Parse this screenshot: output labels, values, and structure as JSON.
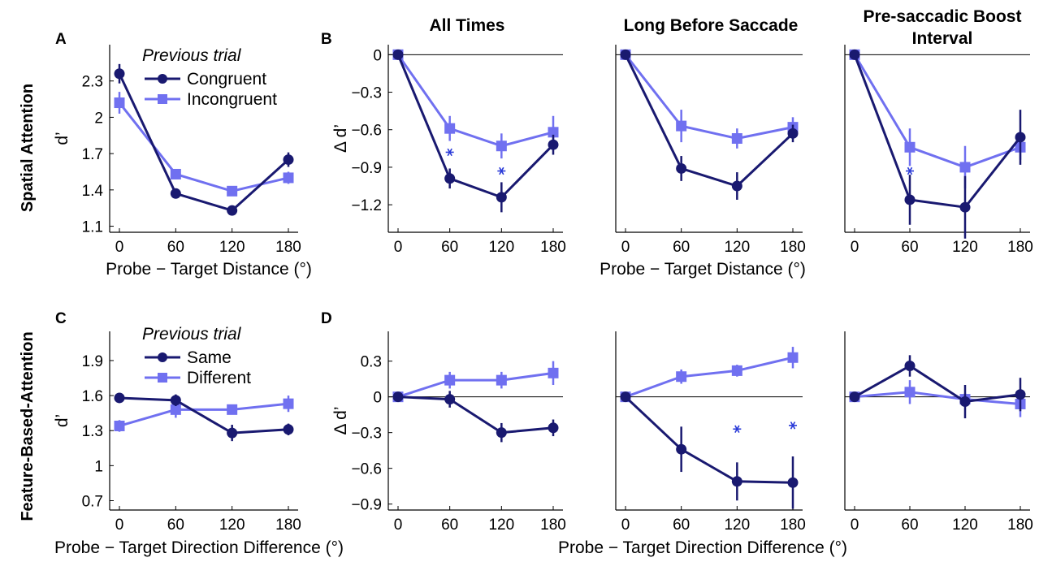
{
  "colors": {
    "dark": "#191970",
    "light": "#7070f0",
    "star": "#2a3ad8"
  },
  "row_labels": [
    "Spatial Attention",
    "Feature-Based-Attention"
  ],
  "column_titles": [
    "All Times",
    "Long Before Saccade",
    "Pre-saccadic Boost",
    "Interval"
  ],
  "panel_letters": [
    "A",
    "B",
    "C",
    "D"
  ],
  "xlabels": {
    "a": "Probe − Target Distance (°)",
    "b": "Probe − Target Distance (°)",
    "c": "Probe − Target Direction Difference (°)",
    "d": "Probe − Target Direction Difference (°)"
  },
  "legend_a": {
    "title": "Previous trial",
    "entries": [
      "Congruent",
      "Incongruent"
    ]
  },
  "legend_c": {
    "title": "Previous trial",
    "entries": [
      "Same",
      "Different"
    ]
  },
  "chart_data": [
    {
      "id": "A",
      "type": "line",
      "ylabel": "d’",
      "ylim": [
        1.05,
        2.6
      ],
      "yticks": [
        1.1,
        1.4,
        1.7,
        2,
        2.3
      ],
      "ytick_labels": [
        "1.1",
        "1.4",
        "1.7",
        "2",
        "2.3"
      ],
      "x": [
        0,
        60,
        120,
        180
      ],
      "xticks": [
        "0",
        "60",
        "120",
        "180"
      ],
      "series": [
        {
          "name": "Congruent",
          "marker": "circle",
          "color": "dark",
          "values": [
            2.36,
            1.37,
            1.23,
            1.65
          ],
          "err": [
            0.08,
            0.03,
            0.04,
            0.06
          ]
        },
        {
          "name": "Incongruent",
          "marker": "square",
          "color": "light",
          "values": [
            2.12,
            1.53,
            1.39,
            1.5
          ],
          "err": [
            0.09,
            0.04,
            0.03,
            0.05
          ]
        }
      ]
    },
    {
      "id": "B1",
      "type": "line",
      "ylabel": "Δ d’",
      "ylim": [
        -1.42,
        0.08
      ],
      "yticks": [
        0,
        -0.3,
        -0.6,
        -0.9,
        -1.2
      ],
      "ytick_labels": [
        "0",
        "−0.3",
        "−0.6",
        "−0.9",
        "−1.2"
      ],
      "x": [
        0,
        60,
        120,
        180
      ],
      "xticks": [
        "0",
        "60",
        "120",
        "180"
      ],
      "zero_line": true,
      "series": [
        {
          "name": "Congruent",
          "marker": "circle",
          "color": "dark",
          "values": [
            0,
            -0.99,
            -1.14,
            -0.72
          ],
          "err": [
            0,
            0.08,
            0.12,
            0.08
          ]
        },
        {
          "name": "Incongruent",
          "marker": "square",
          "color": "light",
          "values": [
            0,
            -0.59,
            -0.73,
            -0.62
          ],
          "err": [
            0,
            0.1,
            0.1,
            0.13
          ]
        }
      ],
      "stars": [
        [
          60,
          -0.78
        ],
        [
          120,
          -0.93
        ]
      ]
    },
    {
      "id": "B2",
      "type": "line",
      "ylabel": "",
      "ylim": [
        -1.42,
        0.08
      ],
      "yticks": [],
      "ytick_labels": [],
      "x": [
        0,
        60,
        120,
        180
      ],
      "xticks": [
        "0",
        "60",
        "120",
        "180"
      ],
      "zero_line": true,
      "series": [
        {
          "name": "Congruent",
          "marker": "circle",
          "color": "dark",
          "values": [
            0,
            -0.91,
            -1.05,
            -0.63
          ],
          "err": [
            0,
            0.1,
            0.11,
            0.07
          ]
        },
        {
          "name": "Incongruent",
          "marker": "square",
          "color": "light",
          "values": [
            0,
            -0.57,
            -0.67,
            -0.58
          ],
          "err": [
            0,
            0.13,
            0.08,
            0.08
          ]
        }
      ],
      "stars": []
    },
    {
      "id": "B3",
      "type": "line",
      "ylabel": "",
      "ylim": [
        -1.42,
        0.08
      ],
      "yticks": [],
      "ytick_labels": [],
      "x": [
        0,
        60,
        120,
        180
      ],
      "xticks": [
        "0",
        "60",
        "120",
        "180"
      ],
      "zero_line": true,
      "series": [
        {
          "name": "Congruent",
          "marker": "circle",
          "color": "dark",
          "values": [
            0,
            -1.16,
            -1.22,
            -0.66
          ],
          "err": [
            0,
            0.2,
            0.25,
            0.22
          ]
        },
        {
          "name": "Incongruent",
          "marker": "square",
          "color": "light",
          "values": [
            0,
            -0.74,
            -0.9,
            -0.74
          ],
          "err": [
            0,
            0.15,
            0.17,
            0.1
          ]
        }
      ],
      "stars": [
        [
          60,
          -0.93
        ]
      ]
    },
    {
      "id": "C",
      "type": "line",
      "ylabel": "d’",
      "ylim": [
        0.62,
        2.15
      ],
      "yticks": [
        0.7,
        1,
        1.3,
        1.6,
        1.9
      ],
      "ytick_labels": [
        "0.7",
        "1",
        "1.3",
        "1.6",
        "1.9"
      ],
      "x": [
        0,
        60,
        120,
        180
      ],
      "xticks": [
        "0",
        "60",
        "120",
        "180"
      ],
      "series": [
        {
          "name": "Same",
          "marker": "circle",
          "color": "dark",
          "values": [
            1.58,
            1.56,
            1.28,
            1.31
          ],
          "err": [
            0.03,
            0.05,
            0.07,
            0.05
          ]
        },
        {
          "name": "Different",
          "marker": "square",
          "color": "light",
          "values": [
            1.34,
            1.48,
            1.48,
            1.53
          ],
          "err": [
            0.05,
            0.07,
            0.04,
            0.07
          ]
        }
      ]
    },
    {
      "id": "D1",
      "type": "line",
      "ylabel": "Δ d’",
      "ylim": [
        -0.95,
        0.55
      ],
      "yticks": [
        0.3,
        0,
        -0.3,
        -0.6,
        -0.9
      ],
      "ytick_labels": [
        "0.3",
        "0",
        "−0.3",
        "−0.6",
        "−0.9"
      ],
      "x": [
        0,
        60,
        120,
        180
      ],
      "xticks": [
        "0",
        "60",
        "120",
        "180"
      ],
      "zero_line": true,
      "series": [
        {
          "name": "Same",
          "marker": "circle",
          "color": "dark",
          "values": [
            0,
            -0.02,
            -0.3,
            -0.26
          ],
          "err": [
            0,
            0.07,
            0.08,
            0.07
          ]
        },
        {
          "name": "Different",
          "marker": "square",
          "color": "light",
          "values": [
            0,
            0.14,
            0.14,
            0.2
          ],
          "err": [
            0,
            0.07,
            0.07,
            0.1
          ]
        }
      ],
      "stars": []
    },
    {
      "id": "D2",
      "type": "line",
      "ylabel": "",
      "ylim": [
        -0.95,
        0.55
      ],
      "yticks": [],
      "ytick_labels": [],
      "x": [
        0,
        60,
        120,
        180
      ],
      "xticks": [
        "0",
        "60",
        "120",
        "180"
      ],
      "zero_line": true,
      "series": [
        {
          "name": "Same",
          "marker": "circle",
          "color": "dark",
          "values": [
            0,
            -0.44,
            -0.71,
            -0.72
          ],
          "err": [
            0,
            0.19,
            0.16,
            0.22
          ]
        },
        {
          "name": "Different",
          "marker": "square",
          "color": "light",
          "values": [
            0,
            0.17,
            0.22,
            0.33
          ],
          "err": [
            0,
            0.06,
            0.05,
            0.09
          ]
        }
      ],
      "stars": [
        [
          120,
          -0.27
        ],
        [
          180,
          -0.24
        ]
      ]
    },
    {
      "id": "D3",
      "type": "line",
      "ylabel": "",
      "ylim": [
        -0.95,
        0.55
      ],
      "yticks": [],
      "ytick_labels": [],
      "x": [
        0,
        60,
        120,
        180
      ],
      "xticks": [
        "0",
        "60",
        "120",
        "180"
      ],
      "zero_line": true,
      "series": [
        {
          "name": "Same",
          "marker": "circle",
          "color": "dark",
          "values": [
            0,
            0.26,
            -0.04,
            0.02
          ],
          "err": [
            0,
            0.09,
            0.14,
            0.14
          ]
        },
        {
          "name": "Different",
          "marker": "square",
          "color": "light",
          "values": [
            0,
            0.04,
            -0.02,
            -0.06
          ],
          "err": [
            0,
            0.1,
            0.05,
            0.11
          ]
        }
      ],
      "stars": []
    }
  ]
}
